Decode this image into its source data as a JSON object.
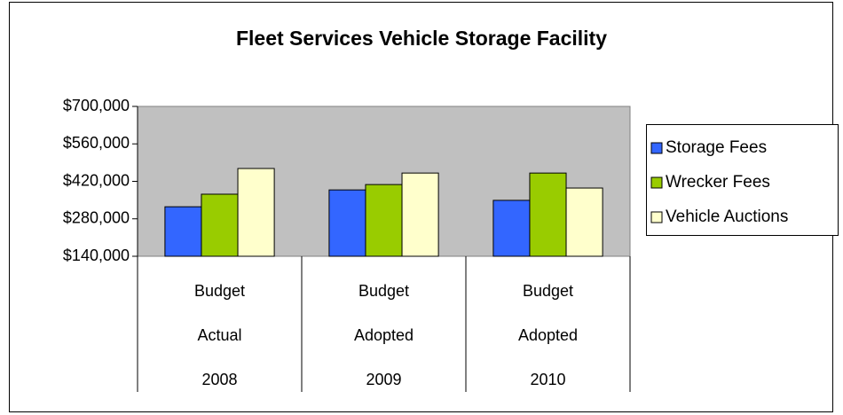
{
  "chart_data": {
    "type": "bar",
    "title": "Fleet Services Vehicle Storage Facility",
    "categories": [
      [
        "Budget",
        "Actual",
        "2008"
      ],
      [
        "Budget",
        "Adopted",
        "2009"
      ],
      [
        "Budget",
        "Adopted",
        "2010"
      ]
    ],
    "series": [
      {
        "name": "Storage Fees",
        "color": "#3366ff",
        "values": [
          325000,
          388000,
          349000
        ]
      },
      {
        "name": "Wrecker Fees",
        "color": "#99cc00",
        "values": [
          372000,
          408000,
          451000
        ]
      },
      {
        "name": "Vehicle Auctions",
        "color": "#ffffcc",
        "values": [
          468000,
          451000,
          395000
        ]
      }
    ],
    "ylim": [
      140000,
      700000
    ],
    "yticks": [
      {
        "value": 140000,
        "label": "$140,000"
      },
      {
        "value": 280000,
        "label": "$280,000"
      },
      {
        "value": 420000,
        "label": "$420,000"
      },
      {
        "value": 560000,
        "label": "$560,000"
      },
      {
        "value": 700000,
        "label": "$700,000"
      }
    ],
    "legend": "right"
  }
}
